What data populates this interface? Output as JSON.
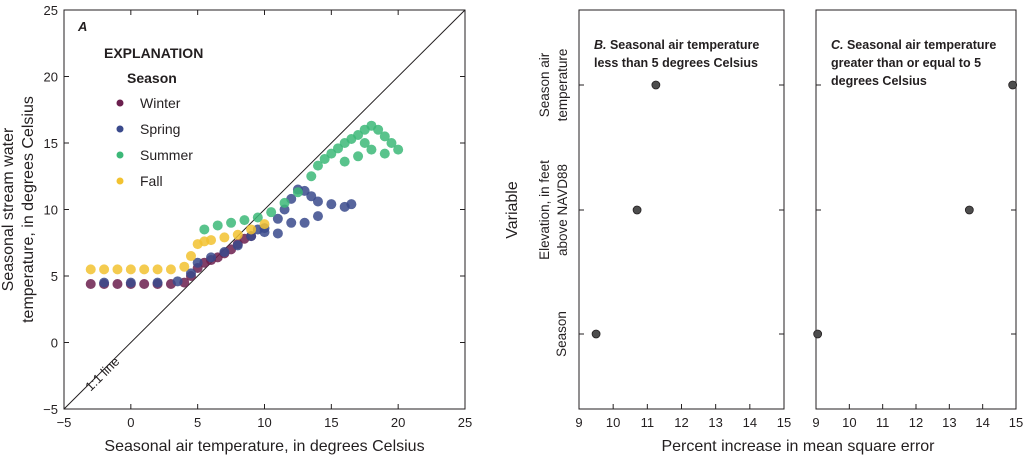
{
  "chart_data": [
    {
      "panel": "A",
      "type": "scatter",
      "xlabel": "Seasonal air temperature, in degrees Celsius",
      "ylabel_lines": [
        "Seasonal stream water",
        "temperature, in degrees Celsius"
      ],
      "xlim": [
        -5,
        25
      ],
      "ylim": [
        -5,
        25
      ],
      "xticks": [
        -5,
        0,
        5,
        10,
        15,
        20,
        25
      ],
      "yticks": [
        -5,
        0,
        5,
        10,
        15,
        20,
        25
      ],
      "reference_line_label": "1:1 line",
      "legend": {
        "title": "EXPLANATION",
        "subtitle": "Season",
        "placement": "top-left",
        "items": [
          {
            "name": "Winter",
            "color": "#6b1f4e"
          },
          {
            "name": "Spring",
            "color": "#3a4a8c"
          },
          {
            "name": "Summer",
            "color": "#3cb878"
          },
          {
            "name": "Fall",
            "color": "#f2c230"
          }
        ]
      },
      "series": [
        {
          "name": "Winter",
          "color": "#6b1f4e",
          "points": [
            [
              -3,
              4.4
            ],
            [
              -2,
              4.4
            ],
            [
              -1,
              4.4
            ],
            [
              0,
              4.4
            ],
            [
              1,
              4.4
            ],
            [
              2,
              4.4
            ],
            [
              3,
              4.4
            ],
            [
              4,
              4.5
            ],
            [
              4.5,
              5.0
            ],
            [
              5,
              5.6
            ],
            [
              5.5,
              6.0
            ],
            [
              6,
              6.2
            ],
            [
              6.5,
              6.4
            ],
            [
              7,
              6.7
            ],
            [
              7.5,
              7.0
            ],
            [
              8,
              7.4
            ],
            [
              8.5,
              7.8
            ],
            [
              9,
              8.0
            ]
          ]
        },
        {
          "name": "Spring",
          "color": "#3a4a8c",
          "points": [
            [
              -2,
              4.5
            ],
            [
              0,
              4.5
            ],
            [
              2,
              4.5
            ],
            [
              3.5,
              4.6
            ],
            [
              4.5,
              5.2
            ],
            [
              5,
              6.0
            ],
            [
              6,
              6.4
            ],
            [
              7,
              6.8
            ],
            [
              8,
              7.3
            ],
            [
              9,
              8.0
            ],
            [
              10,
              8.6
            ],
            [
              11,
              9.3
            ],
            [
              11.5,
              10.0
            ],
            [
              12,
              10.8
            ],
            [
              12.5,
              11.5
            ],
            [
              13,
              11.4
            ],
            [
              13.5,
              11.0
            ],
            [
              14,
              10.6
            ],
            [
              15,
              10.4
            ],
            [
              16,
              10.2
            ],
            [
              16.5,
              10.4
            ],
            [
              12,
              9.0
            ],
            [
              13,
              9.0
            ],
            [
              14,
              9.5
            ],
            [
              11,
              8.2
            ],
            [
              10,
              8.3
            ],
            [
              9.5,
              8.5
            ]
          ]
        },
        {
          "name": "Summer",
          "color": "#3cb878",
          "points": [
            [
              5.5,
              8.5
            ],
            [
              6.5,
              8.8
            ],
            [
              7.5,
              9.0
            ],
            [
              8.5,
              9.2
            ],
            [
              9.5,
              9.4
            ],
            [
              10.5,
              9.8
            ],
            [
              11.5,
              10.5
            ],
            [
              12.5,
              11.3
            ],
            [
              13.5,
              12.5
            ],
            [
              14,
              13.3
            ],
            [
              14.5,
              13.8
            ],
            [
              15,
              14.2
            ],
            [
              15.5,
              14.6
            ],
            [
              16,
              15.0
            ],
            [
              16.5,
              15.3
            ],
            [
              17,
              15.6
            ],
            [
              17.5,
              16.0
            ],
            [
              18,
              16.3
            ],
            [
              18.5,
              16.0
            ],
            [
              19,
              15.5
            ],
            [
              19.5,
              15.0
            ],
            [
              20,
              14.5
            ],
            [
              18,
              14.5
            ],
            [
              17,
              14.0
            ],
            [
              16,
              13.6
            ],
            [
              19,
              14.2
            ],
            [
              17.5,
              15.0
            ]
          ]
        },
        {
          "name": "Fall",
          "color": "#f2c230",
          "points": [
            [
              -3,
              5.5
            ],
            [
              -2,
              5.5
            ],
            [
              -1,
              5.5
            ],
            [
              0,
              5.5
            ],
            [
              1,
              5.5
            ],
            [
              2,
              5.5
            ],
            [
              3,
              5.5
            ],
            [
              4,
              5.7
            ],
            [
              4.5,
              6.5
            ],
            [
              5,
              7.4
            ],
            [
              5.5,
              7.6
            ],
            [
              6,
              7.7
            ],
            [
              7,
              7.9
            ],
            [
              8,
              8.1
            ],
            [
              9,
              8.5
            ],
            [
              10,
              8.9
            ]
          ]
        }
      ]
    },
    {
      "panel": "B",
      "type": "scatter",
      "title_letter": "B.",
      "title_lines": [
        "Seasonal air temperature",
        "less than 5 degrees Celsius"
      ],
      "xlim": [
        9,
        15
      ],
      "xticks": [
        9,
        10,
        11,
        12,
        13,
        14,
        15
      ],
      "categories": [
        "Season air temperature",
        "Elevation, in feet above NAVD88",
        "Season"
      ],
      "values": [
        11.25,
        10.7,
        9.5
      ]
    },
    {
      "panel": "C",
      "type": "scatter",
      "title_letter": "C.",
      "title_lines": [
        "Seasonal air temperature",
        "greater than or equal to 5",
        "degrees Celsius"
      ],
      "xlim": [
        9,
        15
      ],
      "xticks": [
        9,
        10,
        11,
        12,
        13,
        14,
        15
      ],
      "categories": [
        "Season air temperature",
        "Elevation, in feet above NAVD88",
        "Season"
      ],
      "values": [
        14.9,
        13.6,
        9.05
      ]
    }
  ],
  "shared": {
    "variable_axis_label": "Variable",
    "category_label_lines": [
      [
        "Season air",
        "temperature"
      ],
      [
        "Elevation, in feet",
        "above NAVD88"
      ],
      [
        "Season"
      ]
    ],
    "xlabel_bc": "Percent increase in mean square error",
    "point_color": "#4d4d4d"
  }
}
